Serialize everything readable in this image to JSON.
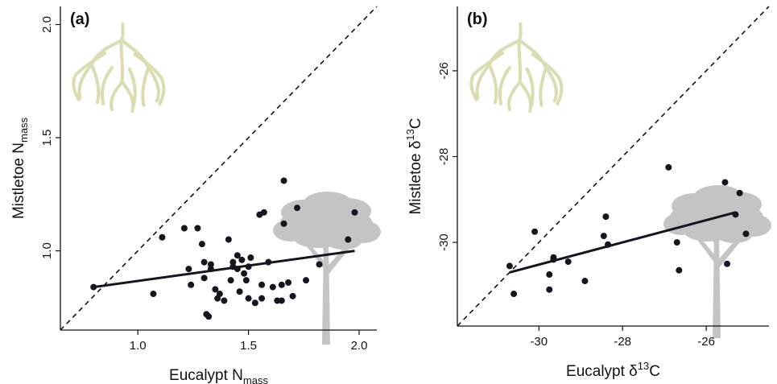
{
  "colors": {
    "points": "#14161f",
    "fit_line": "#14161f",
    "identity_line": "#111111",
    "mistletoe_icon": "#dcdcb2",
    "tree_icon": "#c4c4c4"
  },
  "chart_data": [
    {
      "type": "scatter",
      "panel_label": "(a)",
      "xlabel": {
        "main": "Eucalypt N",
        "sub": "mass"
      },
      "ylabel": {
        "main": "Mistletoe N",
        "sub": "mass"
      },
      "xlim": [
        0.65,
        2.08
      ],
      "ylim": [
        0.65,
        2.08
      ],
      "xticks": [
        1.0,
        1.5,
        2.0
      ],
      "xtick_labels": [
        "1.0",
        "1.5",
        "2.0"
      ],
      "yticks": [
        1.0,
        1.5,
        2.0
      ],
      "ytick_labels": [
        "1.0",
        "1.5",
        "2.0"
      ],
      "reference_line": "1:1",
      "fit_line": {
        "x": [
          0.8,
          1.98
        ],
        "y": [
          0.84,
          1.0
        ]
      },
      "icons": [
        "mistletoe-icon",
        "eucalyptus-tree-icon"
      ],
      "points": [
        [
          0.8,
          0.84
        ],
        [
          1.07,
          0.81
        ],
        [
          1.11,
          1.06
        ],
        [
          1.21,
          1.1
        ],
        [
          1.23,
          0.92
        ],
        [
          1.24,
          0.85
        ],
        [
          1.27,
          1.1
        ],
        [
          1.29,
          1.03
        ],
        [
          1.3,
          0.95
        ],
        [
          1.3,
          0.88
        ],
        [
          1.31,
          0.72
        ],
        [
          1.32,
          0.71
        ],
        [
          1.33,
          0.92
        ],
        [
          1.33,
          0.94
        ],
        [
          1.35,
          0.83
        ],
        [
          1.36,
          0.79
        ],
        [
          1.37,
          0.81
        ],
        [
          1.39,
          0.78
        ],
        [
          1.41,
          1.05
        ],
        [
          1.42,
          0.87
        ],
        [
          1.43,
          0.93
        ],
        [
          1.43,
          0.95
        ],
        [
          1.45,
          0.92
        ],
        [
          1.45,
          0.98
        ],
        [
          1.46,
          0.82
        ],
        [
          1.47,
          0.96
        ],
        [
          1.48,
          0.9
        ],
        [
          1.49,
          0.87
        ],
        [
          1.5,
          0.79
        ],
        [
          1.5,
          0.93
        ],
        [
          1.51,
          0.97
        ],
        [
          1.53,
          0.77
        ],
        [
          1.55,
          1.16
        ],
        [
          1.56,
          0.85
        ],
        [
          1.56,
          0.79
        ],
        [
          1.57,
          1.17
        ],
        [
          1.59,
          0.95
        ],
        [
          1.61,
          0.84
        ],
        [
          1.63,
          0.78
        ],
        [
          1.65,
          0.78
        ],
        [
          1.65,
          0.85
        ],
        [
          1.66,
          1.12
        ],
        [
          1.66,
          1.31
        ],
        [
          1.68,
          0.86
        ],
        [
          1.7,
          0.8
        ],
        [
          1.72,
          1.19
        ],
        [
          1.76,
          0.87
        ],
        [
          1.82,
          0.94
        ],
        [
          1.95,
          1.05
        ],
        [
          1.98,
          1.17
        ]
      ]
    },
    {
      "type": "scatter",
      "panel_label": "(b)",
      "xlabel": {
        "main": "Eucalypt δ",
        "sup": "13",
        "tail": "C"
      },
      "ylabel": {
        "main": "Mistletoe δ",
        "sup": "13",
        "tail": "C"
      },
      "xlim": [
        -31.95,
        -24.5
      ],
      "ylim": [
        -31.95,
        -24.5
      ],
      "xticks": [
        -30,
        -28,
        -26
      ],
      "xtick_labels": [
        "-30",
        "-28",
        "-26"
      ],
      "yticks": [
        -30,
        -28,
        -26
      ],
      "ytick_labels": [
        "-30",
        "-28",
        "-26"
      ],
      "reference_line": "1:1",
      "fit_line": {
        "x": [
          -30.7,
          -25.3
        ],
        "y": [
          -30.7,
          -29.3
        ]
      },
      "icons": [
        "mistletoe-icon",
        "eucalyptus-tree-icon"
      ],
      "points": [
        [
          -30.7,
          -30.55
        ],
        [
          -30.6,
          -31.2
        ],
        [
          -30.1,
          -29.75
        ],
        [
          -29.75,
          -30.75
        ],
        [
          -29.75,
          -31.1
        ],
        [
          -29.65,
          -30.35
        ],
        [
          -29.65,
          -30.4
        ],
        [
          -29.3,
          -30.45
        ],
        [
          -28.9,
          -30.9
        ],
        [
          -28.45,
          -29.85
        ],
        [
          -28.4,
          -29.4
        ],
        [
          -28.35,
          -30.05
        ],
        [
          -26.9,
          -28.25
        ],
        [
          -26.7,
          -30.0
        ],
        [
          -26.65,
          -30.65
        ],
        [
          -25.55,
          -28.6
        ],
        [
          -25.5,
          -30.5
        ],
        [
          -25.3,
          -29.35
        ],
        [
          -25.2,
          -28.85
        ],
        [
          -25.05,
          -29.8
        ]
      ]
    }
  ]
}
